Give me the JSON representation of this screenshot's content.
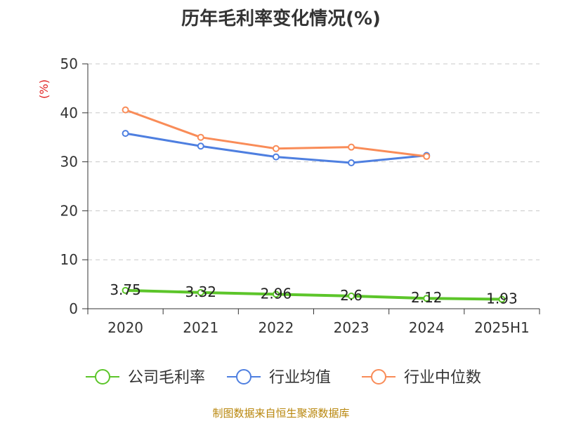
{
  "chart_data": {
    "type": "line",
    "title": "历年毛利率变化情况(%)",
    "ylabel": "(%)",
    "xlabel": "",
    "categories": [
      "2020",
      "2021",
      "2022",
      "2023",
      "2024",
      "2025H1"
    ],
    "ylim": [
      0,
      50
    ],
    "yticks": [
      0,
      10,
      20,
      30,
      40,
      50
    ],
    "grid": "horizontal-dashed",
    "legend_position": "bottom",
    "series": [
      {
        "name": "公司毛利率",
        "color": "#5cc52a",
        "values": [
          3.75,
          3.32,
          2.96,
          2.6,
          2.12,
          1.93
        ],
        "labels": [
          "3.75",
          "3.32",
          "2.96",
          "2.6",
          "2.12",
          "1.93"
        ]
      },
      {
        "name": "行业均值",
        "color": "#4e7fe0",
        "values": [
          35.8,
          33.2,
          31.0,
          29.8,
          31.3,
          null
        ]
      },
      {
        "name": "行业中位数",
        "color": "#f98c58",
        "values": [
          40.6,
          35.0,
          32.7,
          33.0,
          31.1,
          null
        ]
      }
    ]
  },
  "source": "制图数据来自恒生聚源数据库"
}
